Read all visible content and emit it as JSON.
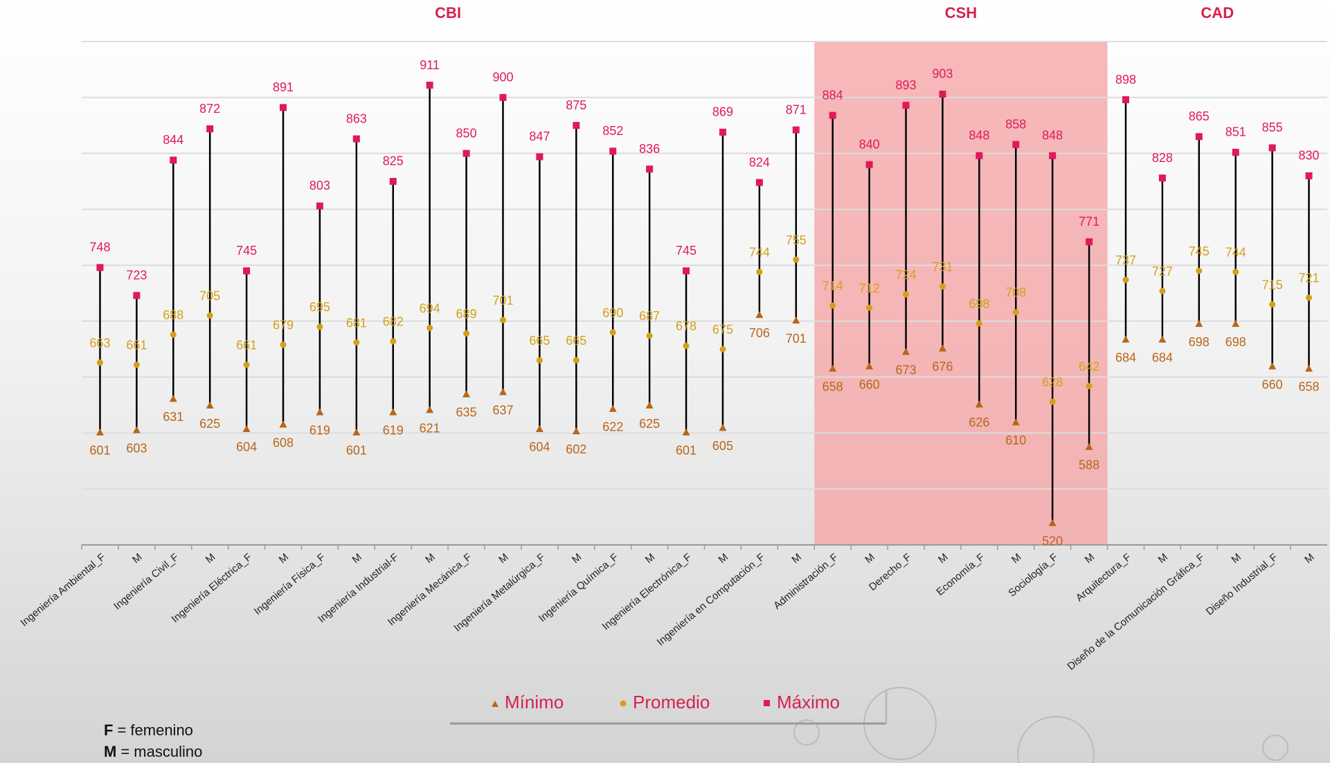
{
  "chart_data": {
    "type": "high-low",
    "groups": [
      {
        "label": "CBI",
        "count": 20
      },
      {
        "label": "CSH",
        "count": 8,
        "shaded": true
      },
      {
        "label": "CAD",
        "count": 6
      }
    ],
    "categories": [
      "Ingeniería Ambiental_F",
      "M",
      "Ingeniería Civil_F",
      "M",
      "Ingeniería Eléctrica_F",
      "M",
      "Ingeniería Física_F",
      "M",
      "Ingeniería Industrial-F",
      "M",
      "Ingeniería Mecánica_F",
      "M",
      "Ingeniería Metalúrgica_F",
      "M",
      "Ingeniería Química_F",
      "M",
      "Ingeniería Electrónica_F",
      "M",
      "Ingeniería en Computación_F",
      "M",
      "Administración_F",
      "M",
      "Derecho_F",
      "M",
      "Economía_F",
      "M",
      "Sociología_F",
      "M",
      "Arquitectura_F",
      "M",
      "Diseño de la Comunicación Gráfica_F",
      "M",
      "Diseño Industrial_F",
      "M"
    ],
    "series": [
      {
        "name": "Mínimo",
        "color": "#b8651a",
        "marker": "triangle",
        "values": [
          601,
          603,
          631,
          625,
          604,
          608,
          619,
          601,
          619,
          621,
          635,
          637,
          604,
          602,
          622,
          625,
          601,
          605,
          706,
          701,
          658,
          660,
          673,
          676,
          626,
          610,
          520,
          588,
          684,
          684,
          698,
          698,
          660,
          658
        ]
      },
      {
        "name": "Promedio",
        "color": "#d4a017",
        "marker": "circle",
        "values": [
          663,
          661,
          688,
          705,
          661,
          679,
          695,
          681,
          682,
          694,
          689,
          701,
          665,
          665,
          690,
          687,
          678,
          675,
          744,
          755,
          714,
          712,
          724,
          731,
          698,
          708,
          628,
          642,
          737,
          727,
          745,
          744,
          715,
          721
        ]
      },
      {
        "name": "Máximo",
        "color": "#e0195a",
        "marker": "square",
        "values": [
          748,
          723,
          844,
          872,
          745,
          891,
          803,
          863,
          825,
          911,
          850,
          900,
          847,
          875,
          852,
          836,
          745,
          869,
          824,
          871,
          884,
          840,
          893,
          903,
          848,
          858,
          848,
          771,
          898,
          828,
          865,
          851,
          855,
          830
        ]
      }
    ],
    "ylim": [
      500,
      950
    ],
    "yticks": [
      500,
      550,
      600,
      650,
      700,
      750,
      800,
      850,
      900,
      950
    ],
    "grid": true,
    "notes": [
      {
        "key": "F",
        "text": "= femenino"
      },
      {
        "key": "M",
        "text": "= masculino"
      }
    ]
  }
}
